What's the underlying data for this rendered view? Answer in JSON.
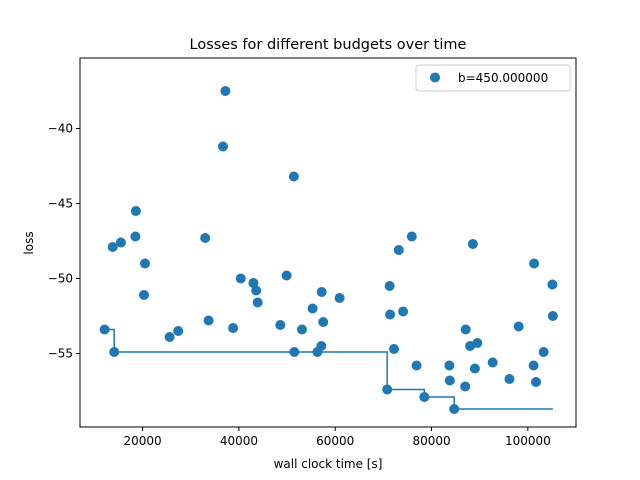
{
  "chart_data": {
    "type": "scatter",
    "title": "Losses for different budgets over time",
    "xlabel": "wall clock time [s]",
    "ylabel": "loss",
    "xlim": [
      7000,
      110000
    ],
    "ylim": [
      -59.9,
      -35.3
    ],
    "xticks": [
      20000,
      40000,
      60000,
      80000,
      100000
    ],
    "xtick_labels": [
      "20000",
      "40000",
      "60000",
      "80000",
      "100000"
    ],
    "yticks": [
      -40,
      -45,
      -50,
      -55
    ],
    "ytick_labels": [
      "−40",
      "−45",
      "−50",
      "−55"
    ],
    "legend_position": "upper right",
    "series": [
      {
        "name": "b=450.000000",
        "color": "#1f77b4",
        "points": [
          [
            12100,
            -53.4
          ],
          [
            14100,
            -54.9
          ],
          [
            13800,
            -47.9
          ],
          [
            15500,
            -47.6
          ],
          [
            18600,
            -45.5
          ],
          [
            18500,
            -47.2
          ],
          [
            20500,
            -49.0
          ],
          [
            20300,
            -51.1
          ],
          [
            25600,
            -53.9
          ],
          [
            27400,
            -53.5
          ],
          [
            33000,
            -47.3
          ],
          [
            33700,
            -52.8
          ],
          [
            37200,
            -37.5
          ],
          [
            36700,
            -41.2
          ],
          [
            38800,
            -53.3
          ],
          [
            40400,
            -50.0
          ],
          [
            43000,
            -50.3
          ],
          [
            43600,
            -50.8
          ],
          [
            43900,
            -51.6
          ],
          [
            48600,
            -53.1
          ],
          [
            49900,
            -49.8
          ],
          [
            51400,
            -43.2
          ],
          [
            51500,
            -54.9
          ],
          [
            53100,
            -53.4
          ],
          [
            55300,
            -52.0
          ],
          [
            56300,
            -54.9
          ],
          [
            57100,
            -54.5
          ],
          [
            57200,
            -50.9
          ],
          [
            57500,
            -52.9
          ],
          [
            60900,
            -51.3
          ],
          [
            70800,
            -57.4
          ],
          [
            71300,
            -50.5
          ],
          [
            71400,
            -52.4
          ],
          [
            72200,
            -54.7
          ],
          [
            73200,
            -48.1
          ],
          [
            74100,
            -52.2
          ],
          [
            75900,
            -47.2
          ],
          [
            76900,
            -55.8
          ],
          [
            78500,
            -57.9
          ],
          [
            83700,
            -55.8
          ],
          [
            83800,
            -56.8
          ],
          [
            84700,
            -58.7
          ],
          [
            87000,
            -57.2
          ],
          [
            87100,
            -53.4
          ],
          [
            88000,
            -54.5
          ],
          [
            88600,
            -47.7
          ],
          [
            89000,
            -56.0
          ],
          [
            89500,
            -54.3
          ],
          [
            92700,
            -55.6
          ],
          [
            96200,
            -56.7
          ],
          [
            98100,
            -53.2
          ],
          [
            101300,
            -49.0
          ],
          [
            101200,
            -55.8
          ],
          [
            101700,
            -56.9
          ],
          [
            103300,
            -54.9
          ],
          [
            105100,
            -50.4
          ],
          [
            105200,
            -52.5
          ]
        ]
      }
    ],
    "incumbent_line": {
      "color": "#1f77b4",
      "steps": [
        [
          12100,
          -53.4
        ],
        [
          14100,
          -53.4
        ],
        [
          14100,
          -54.9
        ],
        [
          70800,
          -54.9
        ],
        [
          70800,
          -57.4
        ],
        [
          78500,
          -57.4
        ],
        [
          78500,
          -57.9
        ],
        [
          84700,
          -57.9
        ],
        [
          84700,
          -58.7
        ],
        [
          105200,
          -58.7
        ]
      ]
    }
  }
}
